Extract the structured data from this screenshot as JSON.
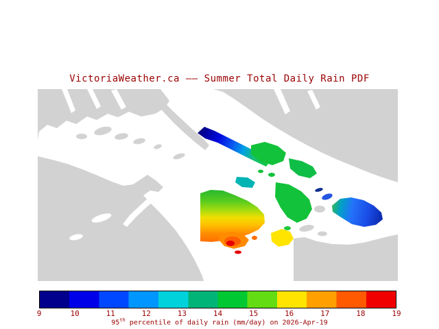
{
  "title": {
    "text": "VictoriaWeather.ca —— Summer Total Daily Rain PDF"
  },
  "colors": {
    "title": "#990000",
    "label": "#990000",
    "land": "#D2D2D2",
    "water": "#FFFFFF",
    "colorbar_border": "#000000"
  },
  "colorbar": {
    "ticks": [
      "9",
      "10",
      "11",
      "12",
      "13",
      "14",
      "15",
      "16",
      "17",
      "18",
      "19"
    ],
    "colors": [
      "#00008C",
      "#0000E8",
      "#0048FF",
      "#0096FF",
      "#00D2DC",
      "#00B478",
      "#00C832",
      "#64DC14",
      "#FFE400",
      "#FFA000",
      "#FF5A00",
      "#F00000"
    ]
  },
  "caption": {
    "prefix": "95",
    "superscript": "th",
    "rest": " percentile of daily rain (mm/day) on 2026-Apr-19"
  },
  "chart_data": {
    "type": "heatmap",
    "title": "VictoriaWeather.ca —— Summer Total Daily Rain PDF",
    "colorbar": {
      "label": "95th percentile of daily rain (mm/day) on 2026-Apr-19",
      "min": 9,
      "max": 19,
      "units": "mm/day",
      "ticks": [
        9,
        10,
        11,
        12,
        13,
        14,
        15,
        16,
        17,
        18,
        19
      ]
    },
    "legend_position": "bottom",
    "map_area": "Strait of Georgia / Gulf Islands region"
  }
}
